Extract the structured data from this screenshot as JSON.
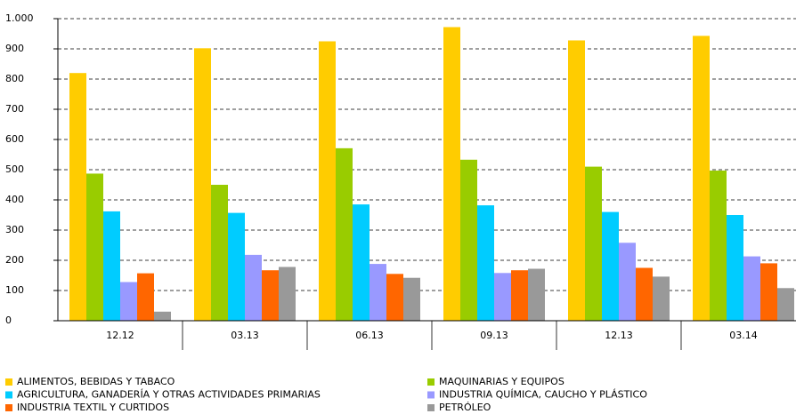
{
  "chart_data": {
    "type": "bar",
    "categories": [
      "12.12",
      "03.13",
      "06.13",
      "09.13",
      "12.13",
      "03.14"
    ],
    "series": [
      {
        "name": "ALIMENTOS, BEBIDAS Y TABACO",
        "color": "#ffcc00",
        "values": [
          820,
          902,
          925,
          972,
          928,
          943
        ]
      },
      {
        "name": "MAQUINARIAS Y EQUIPOS",
        "color": "#99cc00",
        "values": [
          487,
          450,
          571,
          533,
          510,
          497
        ]
      },
      {
        "name": "AGRICULTURA, GANADERÍA Y OTRAS ACTIVIDADES PRIMARIAS",
        "color": "#00ccff",
        "values": [
          362,
          357,
          385,
          382,
          360,
          350
        ]
      },
      {
        "name": "INDUSTRIA QUÍMICA, CAUCHO Y PLÁSTICO",
        "color": "#9999ff",
        "values": [
          128,
          218,
          188,
          158,
          258,
          213
        ]
      },
      {
        "name": "INDUSTRIA TEXTIL Y CURTIDOS",
        "color": "#ff6600",
        "values": [
          157,
          167,
          155,
          167,
          175,
          190
        ]
      },
      {
        "name": "PETRÓLEO",
        "color": "#999999",
        "values": [
          30,
          178,
          142,
          172,
          146,
          108
        ]
      }
    ],
    "ylim": [
      0,
      1000
    ],
    "yticks": [
      0,
      100,
      200,
      300,
      400,
      500,
      600,
      700,
      800,
      900,
      {
        "value": 1000,
        "label": "1.000"
      }
    ],
    "grid": true
  }
}
